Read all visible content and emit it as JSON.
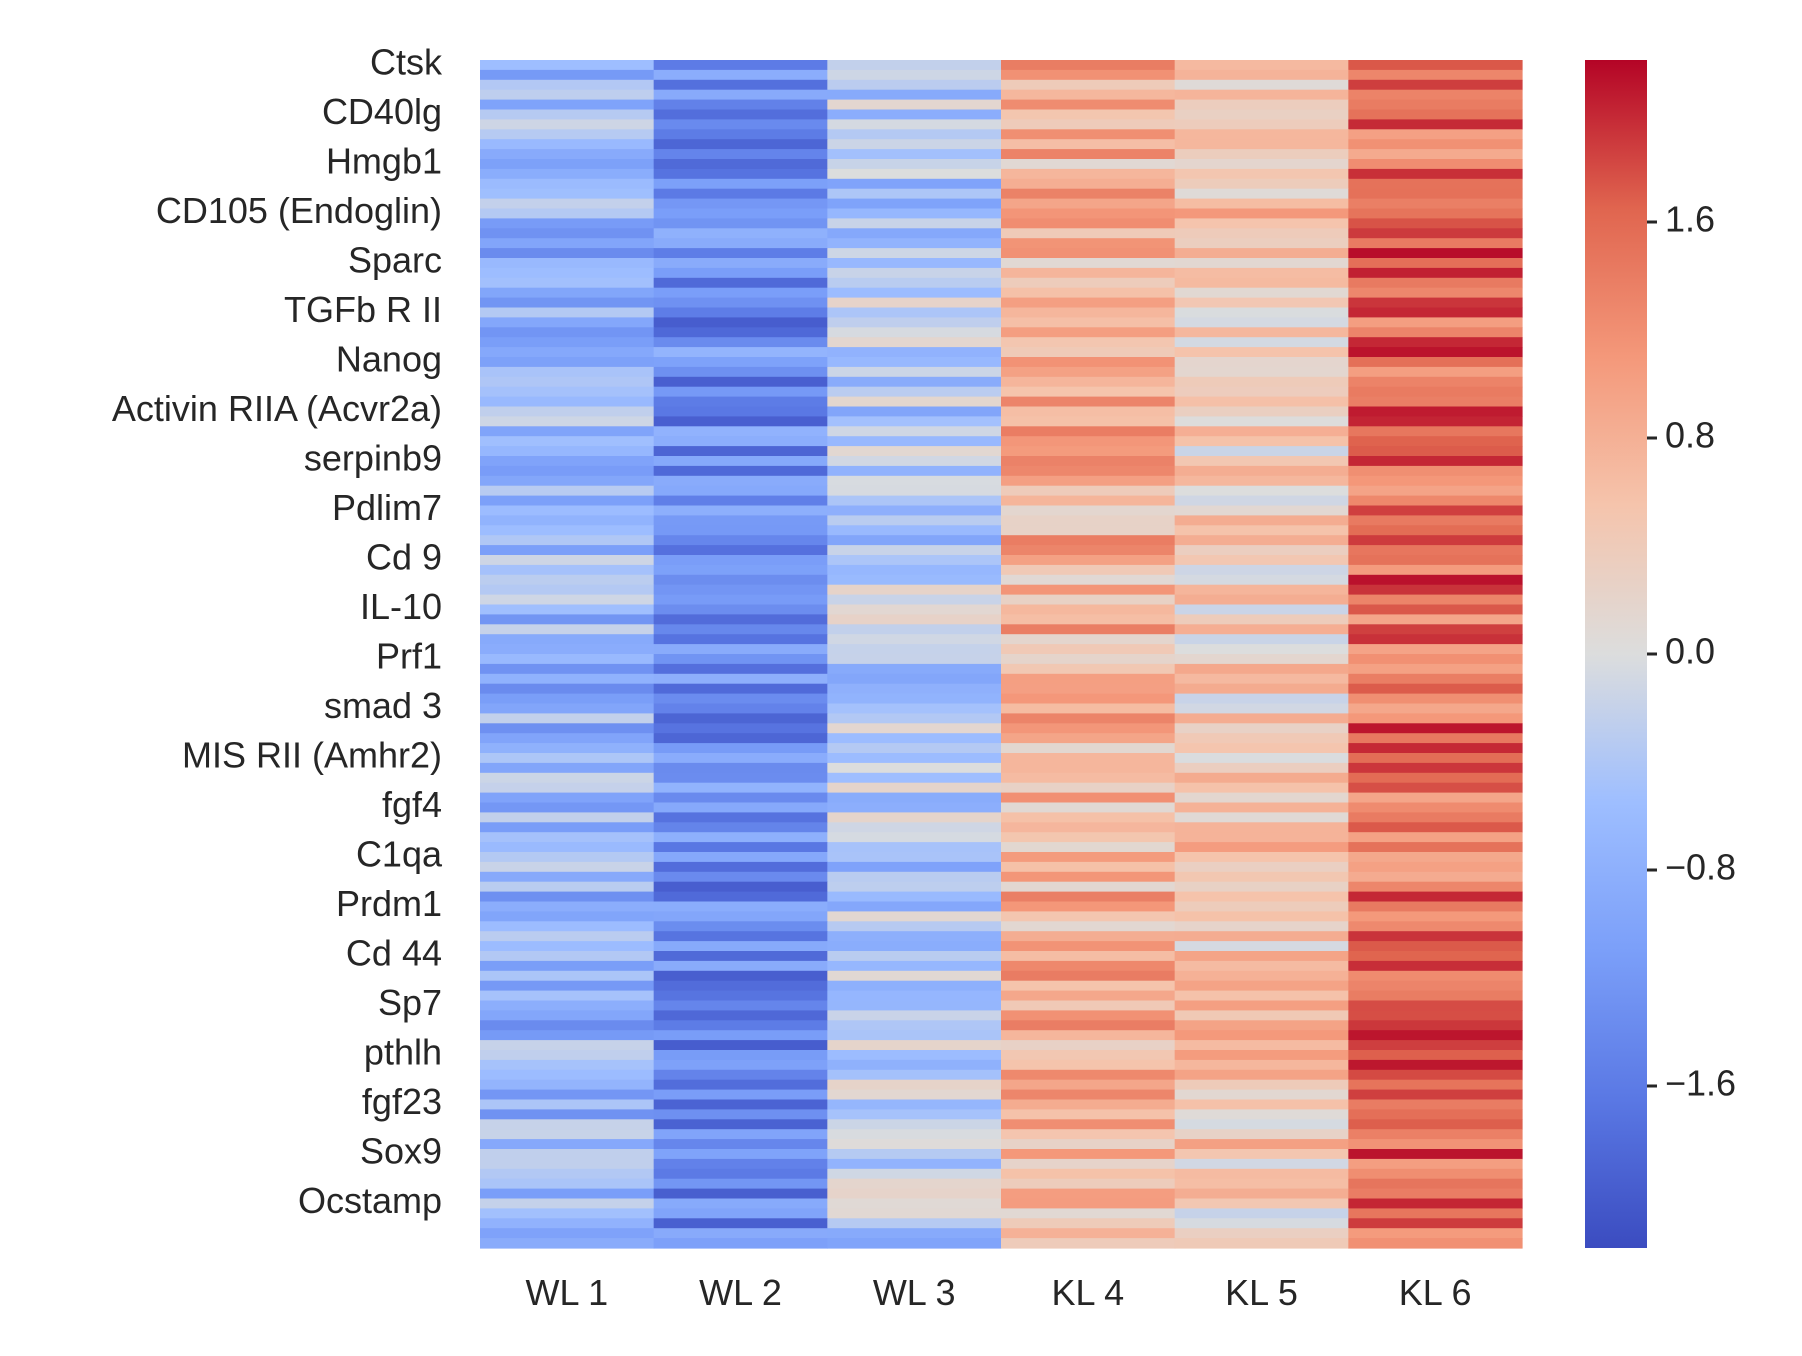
{
  "chart_data": {
    "type": "heatmap",
    "columns": [
      "WL 1",
      "WL 2",
      "WL 3",
      "KL 4",
      "KL 5",
      "KL 6"
    ],
    "row_labels": [
      "Ctsk",
      "CD40lg",
      "Hmgb1",
      "CD105 (Endoglin)",
      "Sparc",
      "TGFb R II",
      "Nanog",
      "Activin RIIA (Acvr2a)",
      "serpinb9",
      "Pdlim7",
      "Cd 9",
      "IL-10",
      "Prf1",
      "smad 3",
      "MIS RII (Amhr2)",
      "fgf4",
      "C1qa",
      "Prdm1",
      "Cd 44",
      "Sp7",
      "pthlh",
      "fgf23",
      "Sox9",
      "Ocstamp"
    ],
    "row_label_note": "labels shown every 5th row of 120 rows",
    "column_mean_values": [
      -0.75,
      -1.35,
      -0.4,
      0.75,
      0.45,
      1.5
    ],
    "colorbar": {
      "ticks": [
        1.6,
        0.8,
        0.0,
        -0.8,
        -1.6
      ],
      "tick_labels": [
        "1.6",
        "0.8",
        "0.0",
        "−0.8",
        "−1.6"
      ],
      "vmin": -2.2,
      "vmax": 2.2,
      "colormap": "coolwarm",
      "low_color": "#3b4cc0",
      "mid_color": "#dddddd",
      "high_color": "#b40426"
    }
  }
}
